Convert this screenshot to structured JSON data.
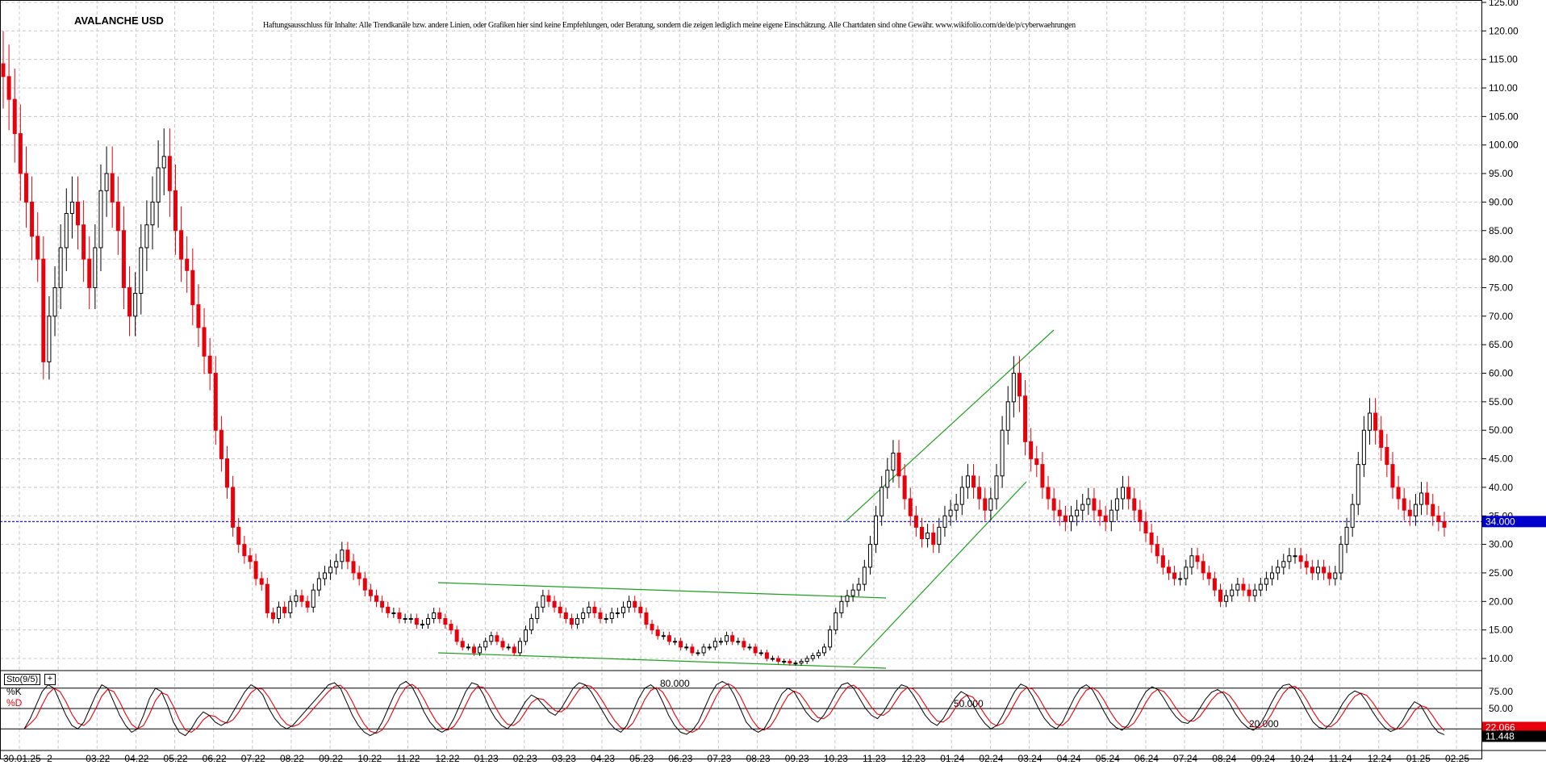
{
  "chart_data": [
    {
      "type": "candlestick",
      "title": "AVALANCHE USD",
      "disclaimer": "Haftungsausschluss für Inhalte: Alle Trendkanäle bzw. andere Linien, oder Grafiken hier sind keine Empfehlungen, oder Beratung, sondern die zeigen lediglich meine eigene Einschätzung. Alle Chartdaten sind ohne Gewähr. www.wikifolio.com/de/de/p/cyberwaehrungen",
      "ylim": [
        5,
        127
      ],
      "y_ticks": [
        "125.00",
        "120.00",
        "115.00",
        "110.00",
        "105.00",
        "100.00",
        "95.00",
        "90.00",
        "85.00",
        "80.00",
        "75.00",
        "70.00",
        "65.00",
        "60.00",
        "55.00",
        "50.00",
        "45.00",
        "40.00",
        "35.00",
        "30.00",
        "25.00",
        "20.00",
        "15.00",
        "10.00"
      ],
      "x_ticks": [
        "30.01.25",
        "2",
        "03.22",
        "04.22",
        "05.22",
        "06.22",
        "07.22",
        "08.22",
        "09.22",
        "10.22",
        "11.22",
        "12.22",
        "01.23",
        "02.23",
        "03.23",
        "04.23",
        "05.23",
        "06.23",
        "07.23",
        "08.23",
        "09.23",
        "10.23",
        "11.23",
        "12.23",
        "01.24",
        "02.24",
        "03.24",
        "04.24",
        "05.24",
        "06.24",
        "07.24",
        "08.24",
        "09.24",
        "10.24",
        "11.24",
        "12.24",
        "01.25",
        "02.25"
      ],
      "current_price_label": "34.000",
      "current_price": 34,
      "grid": true,
      "colors": {
        "up": "#000000",
        "down": "#e8000b",
        "trendline": "#1ea01e",
        "price_line": "#0000ff",
        "price_label_bg": "#0000cc"
      },
      "closes": [
        112,
        108,
        102,
        95,
        90,
        84,
        80,
        62,
        70,
        75,
        82,
        88,
        90,
        86,
        80,
        75,
        82,
        92,
        95,
        90,
        85,
        75,
        70,
        74,
        82,
        86,
        90,
        96,
        98,
        92,
        85,
        80,
        78,
        72,
        68,
        63,
        60,
        50,
        45,
        40,
        33,
        30,
        28,
        27,
        24,
        23,
        18,
        17,
        19,
        18,
        20,
        21,
        20,
        19,
        22,
        24,
        25,
        26,
        27,
        29,
        27,
        25,
        24,
        22,
        21,
        20,
        19,
        18,
        18,
        17,
        17,
        17,
        16,
        16,
        17,
        18,
        17,
        16,
        15,
        13,
        12,
        12,
        11,
        12,
        13,
        14,
        13,
        12,
        12,
        11,
        13,
        15,
        17,
        19,
        21,
        20,
        19,
        18,
        17,
        16,
        17,
        18,
        19,
        18,
        17,
        17,
        18,
        18,
        19,
        20,
        19,
        18,
        16,
        15,
        14,
        14,
        13,
        13,
        12,
        12,
        11,
        11,
        12,
        12,
        13,
        13,
        14,
        13,
        13,
        12,
        12,
        11,
        11,
        10,
        10,
        9.5,
        9.5,
        9.2,
        9.2,
        9.5,
        10,
        10.5,
        11,
        12,
        15,
        18,
        20,
        21,
        22,
        23,
        26,
        30,
        35,
        40,
        43,
        46,
        42,
        38,
        35,
        33,
        31,
        32,
        30,
        33,
        35,
        36,
        37,
        40,
        42,
        40,
        38,
        36,
        38,
        42,
        50,
        55,
        60,
        56,
        48,
        45,
        44,
        40,
        38,
        36,
        35,
        34,
        35,
        36,
        37,
        38,
        36,
        35,
        34,
        36,
        38,
        40,
        38,
        36,
        34,
        32,
        30,
        28,
        26,
        25,
        24,
        24,
        26,
        28,
        27,
        25,
        24,
        22,
        20,
        21,
        22,
        23,
        22,
        21,
        22,
        23,
        24,
        25,
        26,
        27,
        28,
        28,
        27,
        26,
        25,
        26,
        25,
        24,
        25,
        30,
        33,
        37,
        44,
        50,
        53,
        50,
        47,
        44,
        40,
        38,
        36,
        35,
        37,
        39,
        37,
        35,
        34,
        33
      ]
    },
    {
      "type": "line",
      "title": "Sto(9/5)",
      "series": [
        {
          "name": "%K"
        },
        {
          "name": "%D"
        }
      ],
      "levels": [
        {
          "label": "80.000",
          "value": 80
        },
        {
          "label": "50.000",
          "value": 50
        },
        {
          "label": "20.000",
          "value": 20
        }
      ],
      "y_ticks": [
        "75.00",
        "50.00",
        "25.00"
      ],
      "last_values": {
        "%D": "22.066",
        "%K": "11.448"
      },
      "k_values": [
        20,
        35,
        55,
        75,
        85,
        80,
        60,
        40,
        25,
        20,
        30,
        50,
        70,
        85,
        80,
        60,
        40,
        25,
        15,
        20,
        40,
        65,
        80,
        75,
        55,
        30,
        15,
        10,
        20,
        35,
        45,
        40,
        30,
        25,
        30,
        45,
        60,
        75,
        85,
        80,
        70,
        50,
        35,
        25,
        20,
        25,
        35,
        45,
        55,
        65,
        75,
        85,
        88,
        80,
        60,
        40,
        25,
        15,
        10,
        15,
        30,
        50,
        70,
        85,
        90,
        82,
        65,
        45,
        30,
        20,
        15,
        20,
        35,
        55,
        75,
        88,
        85,
        70,
        50,
        35,
        25,
        20,
        30,
        45,
        60,
        70,
        65,
        55,
        45,
        40,
        50,
        65,
        80,
        88,
        85,
        75,
        60,
        45,
        30,
        20,
        15,
        25,
        45,
        65,
        80,
        85,
        78,
        60,
        40,
        25,
        15,
        12,
        18,
        30,
        50,
        70,
        85,
        90,
        85,
        70,
        50,
        30,
        20,
        15,
        20,
        35,
        55,
        72,
        80,
        75,
        60,
        45,
        35,
        30,
        40,
        55,
        72,
        85,
        88,
        80,
        65,
        50,
        40,
        35,
        45,
        60,
        75,
        85,
        82,
        70,
        55,
        40,
        30,
        25,
        35,
        50,
        65,
        75,
        70,
        55,
        40,
        28,
        20,
        25,
        40,
        58,
        75,
        86,
        82,
        68,
        50,
        35,
        25,
        20,
        30,
        48,
        66,
        80,
        85,
        78,
        62,
        45,
        30,
        22,
        18,
        26,
        42,
        60,
        75,
        82,
        78,
        65,
        50,
        38,
        30,
        28,
        36,
        50,
        64,
        74,
        78,
        72,
        58,
        42,
        30,
        22,
        18,
        25,
        40,
        58,
        74,
        84,
        86,
        78,
        62,
        45,
        30,
        22,
        20,
        28,
        42,
        58,
        70,
        76,
        72,
        60,
        45,
        32,
        22,
        16,
        20,
        32,
        48,
        60,
        55,
        40,
        25,
        15,
        11.4
      ]
    }
  ]
}
